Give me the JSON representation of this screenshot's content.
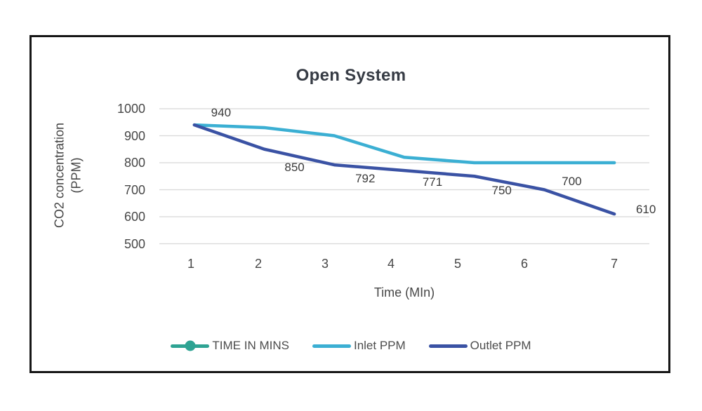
{
  "chart_data": {
    "type": "line",
    "title": "Open System",
    "xlabel": "Time (MIn)",
    "ylabel": "CO2 concentration (PPM)",
    "x": [
      1,
      2,
      3,
      4,
      5,
      6,
      7
    ],
    "ylim": [
      500,
      1000
    ],
    "yticks": [
      1000,
      900,
      800,
      700,
      600,
      500
    ],
    "grid": "horizontal-only",
    "legend_position": "bottom",
    "series": [
      {
        "name": "TIME IN MINS",
        "color": "#2ea393",
        "marker": "circle",
        "values": []
      },
      {
        "name": "Inlet PPM",
        "color": "#3bafd3",
        "marker": "none",
        "values": [
          940,
          930,
          900,
          820,
          800,
          800,
          800
        ]
      },
      {
        "name": "Outlet PPM",
        "color": "#3a52a4",
        "marker": "none",
        "values": [
          940,
          850,
          792,
          771,
          750,
          700,
          610
        ],
        "data_labels": [
          "940",
          "850",
          "792",
          "771",
          "750",
          "700",
          "610"
        ]
      }
    ]
  },
  "colors": {
    "background": "#ffffff",
    "frame_border": "#161616",
    "gridline": "#d8d8d8",
    "title_text": "#363b44",
    "axis_text": "#474747",
    "data_label_text": "#3a3a3a"
  }
}
